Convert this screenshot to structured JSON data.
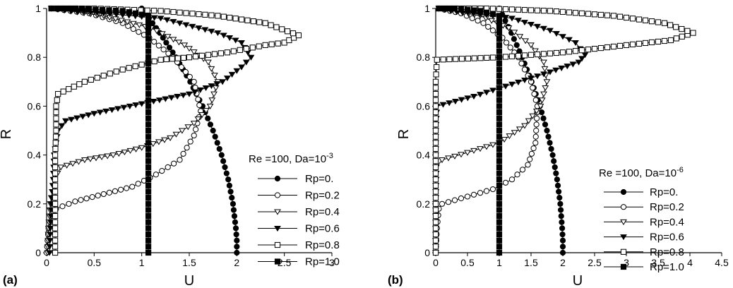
{
  "chart_data": [
    {
      "type": "line",
      "panel_label": "(a)",
      "xlabel": "U",
      "ylabel": "R",
      "xlim": [
        0,
        3
      ],
      "ylim": [
        0,
        1
      ],
      "xticks": [
        "0",
        "0.5",
        "1",
        "1.5",
        "2",
        "2.5",
        "3"
      ],
      "yticks": [
        "0",
        "0.2",
        "0.4",
        "0.6",
        "0.8",
        "1"
      ],
      "legend_title": "Re =100, Da=10",
      "legend_title_exp": "-3",
      "legend_position": "lower-right",
      "series": [
        {
          "name": "Rp=0.",
          "marker": "filled-circle",
          "points": [
            [
              2.0,
              0
            ],
            [
              2.0,
              0.05
            ],
            [
              1.99,
              0.1
            ],
            [
              1.96,
              0.2
            ],
            [
              1.91,
              0.3
            ],
            [
              1.84,
              0.4
            ],
            [
              1.75,
              0.5
            ],
            [
              1.64,
              0.6
            ],
            [
              1.51,
              0.7
            ],
            [
              1.36,
              0.8
            ],
            [
              1.19,
              0.9
            ],
            [
              1.0,
              1.0
            ]
          ]
        },
        {
          "name": "Rp=0.2",
          "marker": "open-circle",
          "points": [
            [
              0,
              0
            ],
            [
              0.02,
              0.1
            ],
            [
              0.06,
              0.15
            ],
            [
              0.1,
              0.18
            ],
            [
              0.3,
              0.21
            ],
            [
              0.6,
              0.24
            ],
            [
              0.9,
              0.27
            ],
            [
              1.15,
              0.32
            ],
            [
              1.4,
              0.38
            ],
            [
              1.55,
              0.48
            ],
            [
              1.62,
              0.58
            ],
            [
              1.55,
              0.7
            ],
            [
              1.33,
              0.8
            ],
            [
              1.08,
              0.88
            ],
            [
              0.8,
              0.94
            ],
            [
              0.45,
              0.98
            ],
            [
              0.05,
              1.0
            ]
          ]
        },
        {
          "name": "Rp=0.4",
          "marker": "open-triangle-down",
          "points": [
            [
              0.01,
              0
            ],
            [
              0.02,
              0.1
            ],
            [
              0.04,
              0.2
            ],
            [
              0.08,
              0.3
            ],
            [
              0.15,
              0.35
            ],
            [
              0.4,
              0.38
            ],
            [
              0.7,
              0.4
            ],
            [
              1.0,
              0.43
            ],
            [
              1.3,
              0.47
            ],
            [
              1.55,
              0.53
            ],
            [
              1.72,
              0.6
            ],
            [
              1.8,
              0.7
            ],
            [
              1.7,
              0.78
            ],
            [
              1.45,
              0.85
            ],
            [
              1.1,
              0.92
            ],
            [
              0.6,
              0.97
            ],
            [
              0.05,
              1.0
            ]
          ]
        },
        {
          "name": "Rp=0.6",
          "marker": "filled-triangle-down",
          "points": [
            [
              0.03,
              0
            ],
            [
              0.04,
              0.1
            ],
            [
              0.05,
              0.2
            ],
            [
              0.07,
              0.3
            ],
            [
              0.08,
              0.4
            ],
            [
              0.12,
              0.5
            ],
            [
              0.2,
              0.54
            ],
            [
              0.5,
              0.57
            ],
            [
              1.0,
              0.61
            ],
            [
              1.5,
              0.65
            ],
            [
              1.85,
              0.7
            ],
            [
              2.05,
              0.76
            ],
            [
              2.15,
              0.8
            ],
            [
              2.05,
              0.86
            ],
            [
              1.8,
              0.9
            ],
            [
              1.2,
              0.96
            ],
            [
              0.6,
              0.98
            ],
            [
              0.05,
              1.0
            ]
          ]
        },
        {
          "name": "Rp=0.8",
          "marker": "open-square",
          "points": [
            [
              0.09,
              0
            ],
            [
              0.09,
              0.1
            ],
            [
              0.09,
              0.2
            ],
            [
              0.09,
              0.3
            ],
            [
              0.09,
              0.4
            ],
            [
              0.1,
              0.5
            ],
            [
              0.1,
              0.6
            ],
            [
              0.12,
              0.65
            ],
            [
              0.4,
              0.7
            ],
            [
              0.8,
              0.75
            ],
            [
              1.2,
              0.79
            ],
            [
              1.5,
              0.8
            ],
            [
              1.9,
              0.82
            ],
            [
              2.3,
              0.85
            ],
            [
              2.5,
              0.86
            ],
            [
              2.65,
              0.89
            ],
            [
              2.3,
              0.94
            ],
            [
              1.8,
              0.97
            ],
            [
              1.2,
              0.99
            ],
            [
              0.5,
              1.0
            ],
            [
              0.05,
              1.0
            ]
          ]
        },
        {
          "name": "Rp=1.0",
          "marker": "filled-square",
          "points": [
            [
              1.07,
              0
            ],
            [
              1.07,
              0.1
            ],
            [
              1.07,
              0.2
            ],
            [
              1.07,
              0.3
            ],
            [
              1.07,
              0.4
            ],
            [
              1.07,
              0.5
            ],
            [
              1.07,
              0.6
            ],
            [
              1.07,
              0.7
            ],
            [
              1.07,
              0.8
            ],
            [
              1.07,
              0.9
            ],
            [
              1.07,
              0.97
            ],
            [
              0.8,
              0.99
            ],
            [
              0.3,
              1.0
            ],
            [
              0.05,
              1.0
            ]
          ]
        }
      ]
    },
    {
      "type": "line",
      "panel_label": "(b)",
      "xlabel": "U",
      "ylabel": "R",
      "xlim": [
        0,
        4.5
      ],
      "ylim": [
        0,
        1
      ],
      "xticks": [
        "0",
        "0.5",
        "1",
        "1.5",
        "2",
        "2.5",
        "3",
        "3.5",
        "4",
        "4.5"
      ],
      "yticks": [
        "0",
        "0.2",
        "0.4",
        "0.6",
        "0.8",
        "1"
      ],
      "legend_title": "Re =100, Da=10",
      "legend_title_exp": "-6",
      "legend_position": "lower-right",
      "series": [
        {
          "name": "Rp=0.",
          "marker": "filled-circle",
          "points": [
            [
              2.0,
              0
            ],
            [
              2.0,
              0.05
            ],
            [
              1.99,
              0.1
            ],
            [
              1.96,
              0.2
            ],
            [
              1.91,
              0.3
            ],
            [
              1.84,
              0.4
            ],
            [
              1.75,
              0.5
            ],
            [
              1.64,
              0.6
            ],
            [
              1.51,
              0.7
            ],
            [
              1.36,
              0.8
            ],
            [
              1.19,
              0.9
            ],
            [
              1.0,
              1.0
            ]
          ]
        },
        {
          "name": "Rp=0.2",
          "marker": "open-circle",
          "points": [
            [
              0,
              0
            ],
            [
              0.02,
              0.1
            ],
            [
              0.05,
              0.18
            ],
            [
              0.1,
              0.2
            ],
            [
              0.5,
              0.23
            ],
            [
              0.9,
              0.26
            ],
            [
              1.2,
              0.3
            ],
            [
              1.45,
              0.36
            ],
            [
              1.57,
              0.45
            ],
            [
              1.6,
              0.6
            ],
            [
              1.5,
              0.7
            ],
            [
              1.3,
              0.8
            ],
            [
              1.05,
              0.88
            ],
            [
              0.75,
              0.94
            ],
            [
              0.4,
              0.98
            ],
            [
              0.05,
              1.0
            ]
          ]
        },
        {
          "name": "Rp=0.4",
          "marker": "open-triangle-down",
          "points": [
            [
              0,
              0
            ],
            [
              0,
              0.1
            ],
            [
              0,
              0.2
            ],
            [
              0.01,
              0.35
            ],
            [
              0.1,
              0.38
            ],
            [
              0.5,
              0.41
            ],
            [
              1.0,
              0.45
            ],
            [
              1.4,
              0.52
            ],
            [
              1.65,
              0.6
            ],
            [
              1.75,
              0.7
            ],
            [
              1.7,
              0.78
            ],
            [
              1.5,
              0.85
            ],
            [
              1.15,
              0.92
            ],
            [
              0.7,
              0.97
            ],
            [
              0.05,
              1.0
            ]
          ]
        },
        {
          "name": "Rp=0.6",
          "marker": "filled-triangle-down",
          "points": [
            [
              0,
              0
            ],
            [
              0,
              0.1
            ],
            [
              0,
              0.2
            ],
            [
              0,
              0.3
            ],
            [
              0,
              0.4
            ],
            [
              0,
              0.5
            ],
            [
              0.02,
              0.6
            ],
            [
              0.6,
              0.64
            ],
            [
              1.2,
              0.69
            ],
            [
              1.8,
              0.74
            ],
            [
              2.25,
              0.78
            ],
            [
              2.35,
              0.81
            ],
            [
              2.2,
              0.86
            ],
            [
              1.8,
              0.91
            ],
            [
              1.2,
              0.96
            ],
            [
              0.6,
              0.98
            ],
            [
              0.05,
              1.0
            ]
          ]
        },
        {
          "name": "Rp=0.8",
          "marker": "open-square",
          "points": [
            [
              0,
              0
            ],
            [
              0,
              0.1
            ],
            [
              0,
              0.2
            ],
            [
              0,
              0.3
            ],
            [
              0,
              0.4
            ],
            [
              0,
              0.5
            ],
            [
              0,
              0.6
            ],
            [
              0,
              0.7
            ],
            [
              0.02,
              0.79
            ],
            [
              1.0,
              0.8
            ],
            [
              2.0,
              0.82
            ],
            [
              3.0,
              0.85
            ],
            [
              3.7,
              0.87
            ],
            [
              4.05,
              0.9
            ],
            [
              3.6,
              0.94
            ],
            [
              2.8,
              0.97
            ],
            [
              1.8,
              0.99
            ],
            [
              0.8,
              1.0
            ],
            [
              0.05,
              1.0
            ]
          ]
        },
        {
          "name": "Rp=1.0",
          "marker": "filled-square",
          "points": [
            [
              1.0,
              0
            ],
            [
              1.0,
              0.1
            ],
            [
              1.0,
              0.2
            ],
            [
              1.0,
              0.3
            ],
            [
              1.0,
              0.4
            ],
            [
              1.0,
              0.5
            ],
            [
              1.0,
              0.6
            ],
            [
              1.0,
              0.7
            ],
            [
              1.0,
              0.8
            ],
            [
              1.0,
              0.9
            ],
            [
              1.0,
              0.97
            ],
            [
              0.7,
              0.99
            ],
            [
              0.3,
              1.0
            ],
            [
              0.05,
              1.0
            ]
          ]
        }
      ]
    }
  ]
}
